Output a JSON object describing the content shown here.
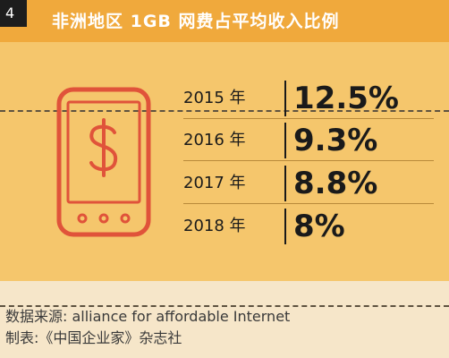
{
  "badge": "4",
  "colors": {
    "header": "#f0a93c",
    "panel": "#f5c66c",
    "phone": "#e0533a",
    "background": "#f6e6c9"
  },
  "icons": {
    "phone": "phone-dollar-icon"
  },
  "chart_data": {
    "type": "table",
    "title": "非洲地区 1GB 网费占平均收入比例",
    "categories": [
      "2015 年",
      "2016 年",
      "2017 年",
      "2018 年"
    ],
    "values": [
      12.5,
      9.3,
      8.8,
      8
    ],
    "value_labels": [
      "12.5%",
      "9.3%",
      "8.8%",
      "8%"
    ]
  },
  "footer": {
    "source": "数据来源: alliance for affordable Internet",
    "maker": "制表:《中国企业家》杂志社"
  }
}
